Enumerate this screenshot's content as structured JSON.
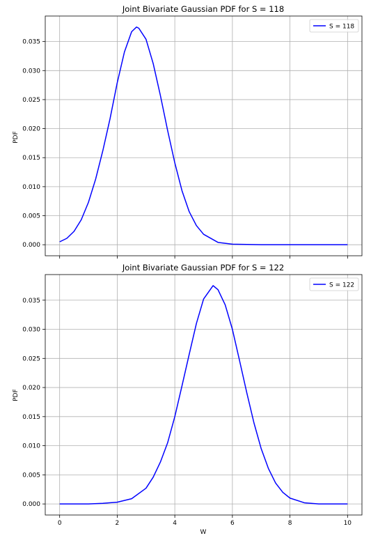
{
  "chart_data": [
    {
      "type": "line",
      "title": "Joint Bivariate Gaussian PDF for S = 118",
      "xlabel": "",
      "ylabel": "PDF",
      "xlim": [
        -0.5,
        10.5
      ],
      "ylim": [
        -0.0019,
        0.0394
      ],
      "xticks": [
        0,
        2,
        4,
        6,
        8,
        10
      ],
      "xtick_labels_visible": false,
      "yticks": [
        0.0,
        0.005,
        0.01,
        0.015,
        0.02,
        0.025,
        0.03,
        0.035
      ],
      "ytick_labels": [
        "0.000",
        "0.005",
        "0.010",
        "0.015",
        "0.020",
        "0.025",
        "0.030",
        "0.035"
      ],
      "grid": true,
      "legend_position": "top-right",
      "series": [
        {
          "name": "S = 118",
          "color": "#0000ff",
          "x": [
            0,
            0.25,
            0.5,
            0.75,
            1.0,
            1.25,
            1.5,
            1.75,
            2.0,
            2.25,
            2.5,
            2.67,
            2.75,
            3.0,
            3.25,
            3.5,
            3.75,
            4.0,
            4.25,
            4.5,
            4.75,
            5.0,
            5.5,
            6.0,
            7.0,
            8.0,
            9.0,
            10.0
          ],
          "y": [
            0.0005,
            0.0011,
            0.0023,
            0.0043,
            0.0073,
            0.0113,
            0.0162,
            0.0217,
            0.0279,
            0.0332,
            0.0367,
            0.0375,
            0.0373,
            0.0354,
            0.0312,
            0.0257,
            0.0197,
            0.0141,
            0.0093,
            0.0057,
            0.0033,
            0.0018,
            0.0004,
            0.0001,
            0.0,
            0.0,
            0.0,
            0.0
          ]
        }
      ]
    },
    {
      "type": "line",
      "title": "Joint Bivariate Gaussian PDF for S = 122",
      "xlabel": "W",
      "ylabel": "PDF",
      "xlim": [
        -0.5,
        10.5
      ],
      "ylim": [
        -0.0019,
        0.0394
      ],
      "xticks": [
        0,
        2,
        4,
        6,
        8,
        10
      ],
      "xtick_labels": [
        "0",
        "2",
        "4",
        "6",
        "8",
        "10"
      ],
      "xtick_labels_visible": true,
      "yticks": [
        0.0,
        0.005,
        0.01,
        0.015,
        0.02,
        0.025,
        0.03,
        0.035
      ],
      "ytick_labels": [
        "0.000",
        "0.005",
        "0.010",
        "0.015",
        "0.020",
        "0.025",
        "0.030",
        "0.035"
      ],
      "grid": true,
      "legend_position": "top-right",
      "series": [
        {
          "name": "S = 122",
          "color": "#0000ff",
          "x": [
            0,
            1.0,
            1.5,
            2.0,
            2.5,
            3.0,
            3.25,
            3.5,
            3.75,
            4.0,
            4.25,
            4.5,
            4.75,
            5.0,
            5.33,
            5.5,
            5.75,
            6.0,
            6.25,
            6.5,
            6.75,
            7.0,
            7.25,
            7.5,
            7.75,
            8.0,
            8.5,
            9.0,
            10.0
          ],
          "y": [
            0.0,
            0.0,
            0.0001,
            0.0003,
            0.0009,
            0.0027,
            0.0046,
            0.0072,
            0.0105,
            0.015,
            0.0203,
            0.0257,
            0.031,
            0.0352,
            0.0375,
            0.0368,
            0.0342,
            0.03,
            0.0246,
            0.0191,
            0.0139,
            0.0095,
            0.0061,
            0.0036,
            0.002,
            0.001,
            0.0002,
            0.0,
            0.0
          ]
        }
      ]
    }
  ]
}
